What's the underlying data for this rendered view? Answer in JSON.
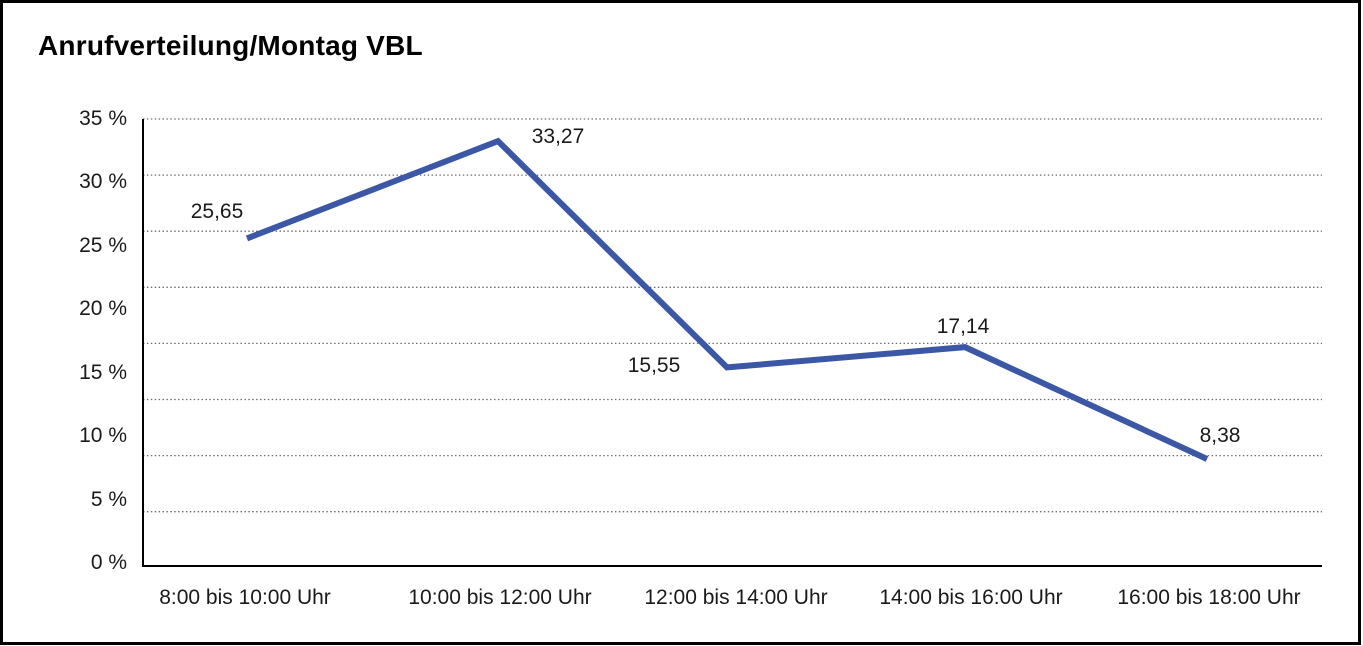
{
  "chart_data": {
    "type": "line",
    "title": "Anrufverteilung/Montag VBL",
    "categories": [
      "8:00 bis 10:00 Uhr",
      "10:00 bis 12:00 Uhr",
      "12:00 bis 14:00 Uhr",
      "14:00 bis 16:00 Uhr",
      "16:00 bis 18:00 Uhr"
    ],
    "series": [
      {
        "values": [
          25.65,
          33.27,
          15.55,
          17.14,
          8.38
        ]
      }
    ],
    "point_labels": [
      "25,65",
      "33,27",
      "15,55",
      "17,14",
      "8,38"
    ],
    "y_axis": {
      "min": 0,
      "max": 35,
      "unit": "%",
      "ticks": [
        "35 %",
        "30 %",
        "25 %",
        "20 %",
        "15 %",
        "10 %",
        "5 %",
        "0 %"
      ],
      "tick_values": [
        35,
        30,
        25,
        20,
        15,
        10,
        5,
        0
      ]
    },
    "grid": "horizontal-dotted",
    "legend": "none",
    "colors": {
      "line": "#3B57A6",
      "axis": "#000000",
      "gridline": "#6e6e6e",
      "text": "#1a1a1a",
      "frame_border": "#000000",
      "background": "#ffffff"
    }
  }
}
